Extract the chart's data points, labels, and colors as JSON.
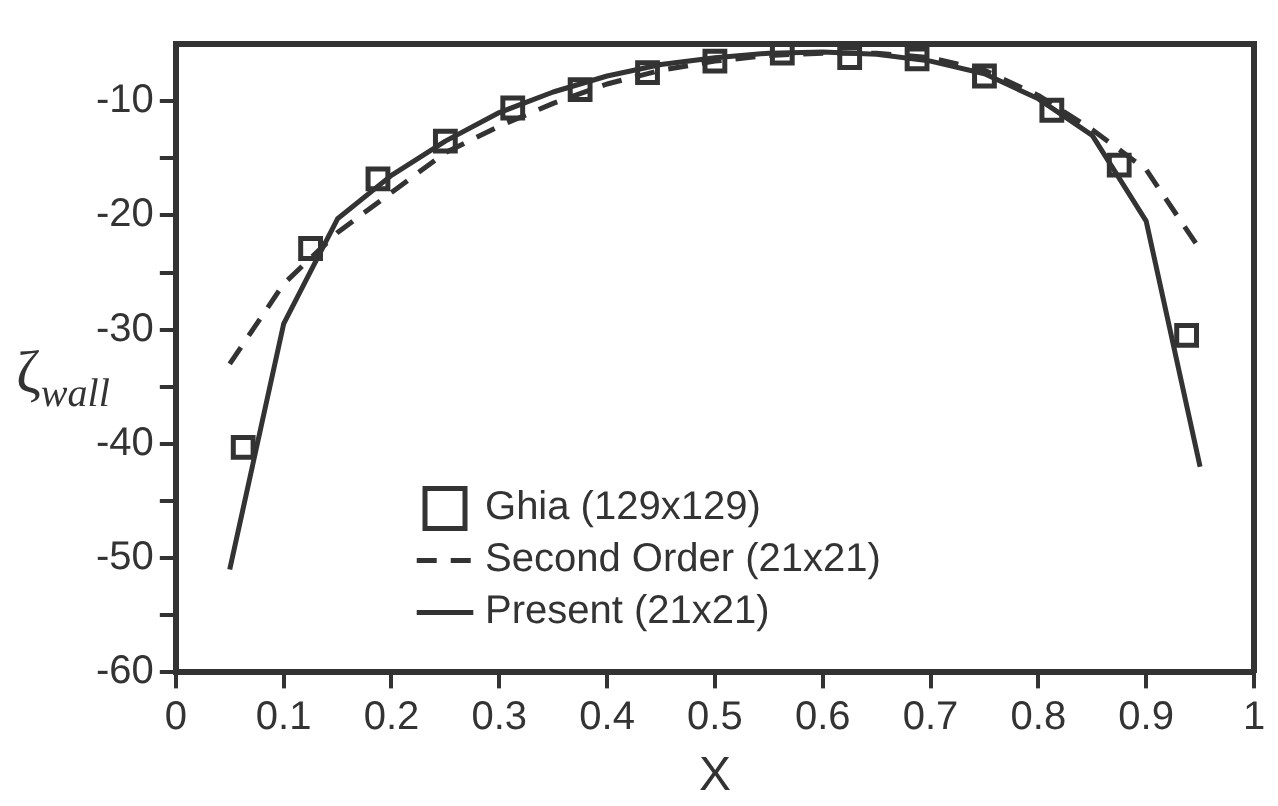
{
  "chart_data": {
    "type": "line",
    "xlabel": "X",
    "ylabel": "ζ$_{wall}$",
    "xlim": [
      0,
      1
    ],
    "xticks": [
      0,
      0.1,
      0.2,
      0.3,
      0.4,
      0.5,
      0.6,
      0.7,
      0.8,
      0.9,
      1
    ],
    "ylim": [
      -60,
      -5
    ],
    "yticks": [
      -60,
      {
        "value": -55,
        "label": null
      },
      -50,
      {
        "value": -45,
        "label": null
      },
      -40,
      {
        "value": -35,
        "label": null
      },
      -30,
      {
        "value": -25,
        "label": null
      },
      -20,
      {
        "value": -15,
        "label": null
      },
      -10
    ],
    "grid": false,
    "legend": "bottom",
    "series": [
      {
        "name": "Ghia (129x129)",
        "type": "scatter",
        "marker": "square",
        "color": "#333333",
        "x": [
          0.0625,
          0.125,
          0.1875,
          0.25,
          0.3125,
          0.375,
          0.4375,
          0.5,
          0.5625,
          0.625,
          0.6875,
          0.75,
          0.8125,
          0.875,
          0.9375
        ],
        "values": [
          -40.3,
          -22.9,
          -16.8,
          -13.5,
          -10.6,
          -9.0,
          -7.5,
          -6.5,
          -5.8,
          -6.2,
          -6.3,
          -7.8,
          -10.8,
          -15.6,
          -30.5
        ]
      },
      {
        "name": "Second Order (21x21)",
        "type": "line",
        "line_style": "dashed",
        "color": "#333333",
        "x": [
          0.05,
          0.1,
          0.15,
          0.2,
          0.25,
          0.3,
          0.35,
          0.4,
          0.45,
          0.5,
          0.55,
          0.6,
          0.65,
          0.7,
          0.75,
          0.8,
          0.85,
          0.9,
          0.95
        ],
        "values": [
          -33,
          -26,
          -21.5,
          -18,
          -14.5,
          -12.2,
          -10.2,
          -8.5,
          -7.3,
          -6.5,
          -6,
          -5.8,
          -5.8,
          -6.2,
          -7.3,
          -9.5,
          -12.5,
          -16,
          -23
        ]
      },
      {
        "name": "Present (21x21)",
        "type": "line",
        "line_style": "solid",
        "color": "#333333",
        "x": [
          0.05,
          0.1,
          0.15,
          0.2,
          0.25,
          0.3,
          0.35,
          0.4,
          0.45,
          0.5,
          0.55,
          0.6,
          0.65,
          0.7,
          0.75,
          0.8,
          0.85,
          0.9,
          0.95
        ],
        "values": [
          -51,
          -29.5,
          -20.3,
          -16.5,
          -13.5,
          -11,
          -9.2,
          -7.8,
          -6.8,
          -6.2,
          -5.8,
          -5.7,
          -5.9,
          -6.5,
          -7.6,
          -9.8,
          -13,
          -20.5,
          -42
        ]
      }
    ]
  }
}
